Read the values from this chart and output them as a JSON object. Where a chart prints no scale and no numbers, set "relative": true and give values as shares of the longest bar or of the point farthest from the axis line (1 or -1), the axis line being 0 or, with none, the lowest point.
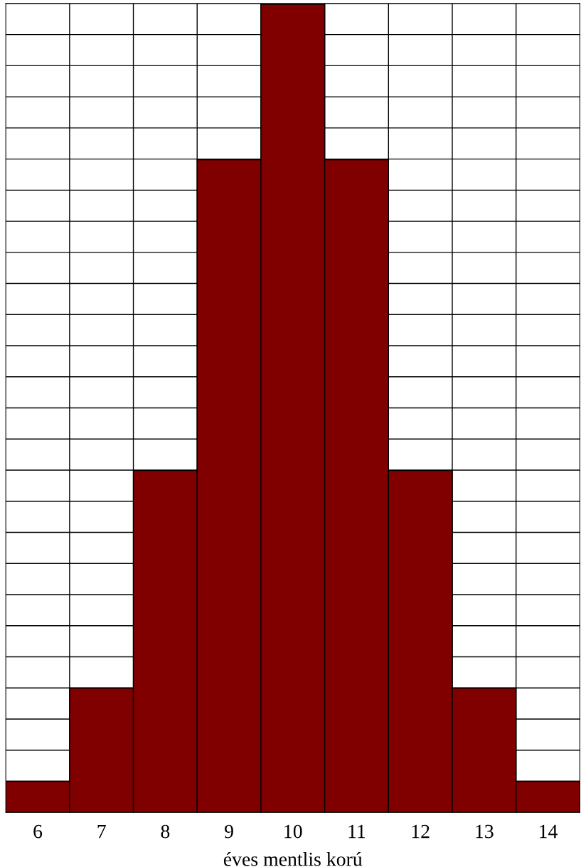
{
  "chart_data": {
    "type": "bar",
    "xlabel": "éves mentlis korú",
    "categories": [
      "6",
      "7",
      "8",
      "9",
      "10",
      "11",
      "12",
      "13",
      "14"
    ],
    "values": [
      0.0385,
      0.1538,
      0.4231,
      0.8077,
      1,
      0.8077,
      0.4231,
      0.1538,
      0.0385
    ],
    "color": "#800000",
    "relative": true,
    "grid": true
  }
}
